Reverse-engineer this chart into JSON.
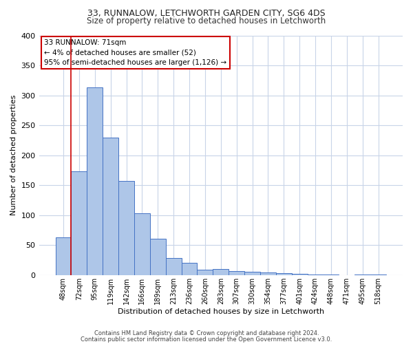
{
  "title1": "33, RUNNALOW, LETCHWORTH GARDEN CITY, SG6 4DS",
  "title2": "Size of property relative to detached houses in Letchworth",
  "xlabel": "Distribution of detached houses by size in Letchworth",
  "ylabel": "Number of detached properties",
  "categories": [
    "48sqm",
    "72sqm",
    "95sqm",
    "119sqm",
    "142sqm",
    "166sqm",
    "189sqm",
    "213sqm",
    "236sqm",
    "260sqm",
    "283sqm",
    "307sqm",
    "330sqm",
    "354sqm",
    "377sqm",
    "401sqm",
    "424sqm",
    "448sqm",
    "471sqm",
    "495sqm",
    "518sqm"
  ],
  "values": [
    63,
    173,
    313,
    229,
    157,
    103,
    61,
    28,
    21,
    9,
    10,
    7,
    5,
    4,
    3,
    2,
    1,
    1,
    0,
    1,
    1
  ],
  "bar_color": "#aec6e8",
  "bar_edge_color": "#4472c4",
  "annotation_box_text": "33 RUNNALOW: 71sqm\n← 4% of detached houses are smaller (52)\n95% of semi-detached houses are larger (1,126) →",
  "annotation_box_edge_color": "#cc0000",
  "vline_x_index": 1,
  "ylim": [
    0,
    400
  ],
  "yticks": [
    0,
    50,
    100,
    150,
    200,
    250,
    300,
    350,
    400
  ],
  "footer1": "Contains HM Land Registry data © Crown copyright and database right 2024.",
  "footer2": "Contains public sector information licensed under the Open Government Licence v3.0.",
  "background_color": "#ffffff",
  "grid_color": "#c8d4e8",
  "title1_fontsize": 9,
  "title2_fontsize": 8.5,
  "ylabel_fontsize": 8,
  "xlabel_fontsize": 8,
  "annot_fontsize": 7.5,
  "tick_fontsize": 7,
  "footer_fontsize": 6
}
